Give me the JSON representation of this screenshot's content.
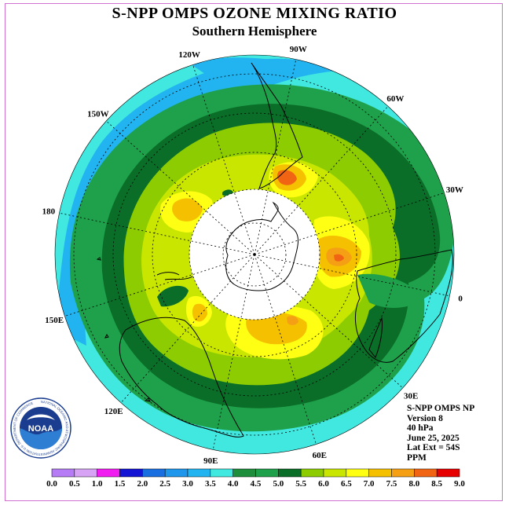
{
  "header": {
    "title": "S-NPP OMPS OZONE MIXING RATIO",
    "subtitle": "Southern Hemisphere"
  },
  "map": {
    "projection": "polar stereographic, south pole centered",
    "longitude_labels": [
      {
        "text": "0",
        "lon": 0
      },
      {
        "text": "30W",
        "lon": -30
      },
      {
        "text": "60W",
        "lon": -60
      },
      {
        "text": "90W",
        "lon": -90
      },
      {
        "text": "120W",
        "lon": -120
      },
      {
        "text": "150W",
        "lon": -150
      },
      {
        "text": "180",
        "lon": 180
      },
      {
        "text": "150E",
        "lon": 150
      },
      {
        "text": "120E",
        "lon": 120
      },
      {
        "text": "90E",
        "lon": 90
      },
      {
        "text": "60E",
        "lon": 60
      },
      {
        "text": "30E",
        "lon": 30
      }
    ],
    "no_data_region": "polar cap (white)"
  },
  "info": {
    "product": "S-NPP OMPS NP",
    "version": "Version 8",
    "level": "40 hPa",
    "date": "June 25, 2025",
    "lat_ext": "Lat Ext = 54S",
    "units": "PPM"
  },
  "colorbar": {
    "labels": [
      "0.0",
      "0.5",
      "1.0",
      "1.5",
      "2.0",
      "2.5",
      "3.0",
      "3.5",
      "4.0",
      "4.5",
      "5.0",
      "5.5",
      "6.0",
      "6.5",
      "7.0",
      "7.5",
      "8.0",
      "8.5",
      "9.0"
    ],
    "colors": [
      "#b57cf5",
      "#d7a4f5",
      "#f01cf0",
      "#1414d4",
      "#1a6fe0",
      "#1e96eb",
      "#22b4f0",
      "#40e8e0",
      "#1e8e3c",
      "#1fa04a",
      "#0a6e28",
      "#8ccc00",
      "#c8e600",
      "#ffff14",
      "#f5c000",
      "#f5a014",
      "#f06414",
      "#e60000",
      "#8c5a3c"
    ]
  },
  "logo": {
    "text": "NOAA",
    "ring_text": "NATIONAL OCEANIC AND ATMOSPHERIC ADMINISTRATION  U.S. DEPARTMENT OF COMMERCE"
  }
}
